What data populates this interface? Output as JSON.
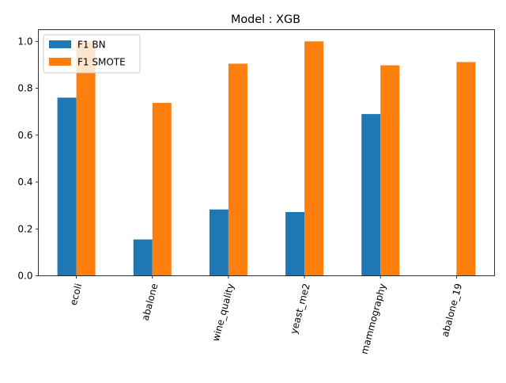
{
  "chart_data": {
    "type": "bar",
    "title": "Model : XGB",
    "xlabel": "",
    "ylabel": "",
    "categories": [
      "ecoli",
      "abalone",
      "wine_quality",
      "yeast_me2",
      "mammography",
      "abalone_19"
    ],
    "series": [
      {
        "name": "F1 BN",
        "color": "#1f77b4",
        "values": [
          0.76,
          0.155,
          0.283,
          0.272,
          0.69,
          0.0
        ]
      },
      {
        "name": "F1 SMOTE",
        "color": "#ff7f0e",
        "values": [
          1.0,
          0.738,
          0.905,
          1.0,
          0.898,
          0.912
        ]
      }
    ],
    "ylim": [
      0,
      1.05
    ],
    "yticks": [
      "0.0",
      "0.2",
      "0.4",
      "0.6",
      "0.8",
      "1.0"
    ],
    "grid": false,
    "legend_position": "top-left"
  }
}
